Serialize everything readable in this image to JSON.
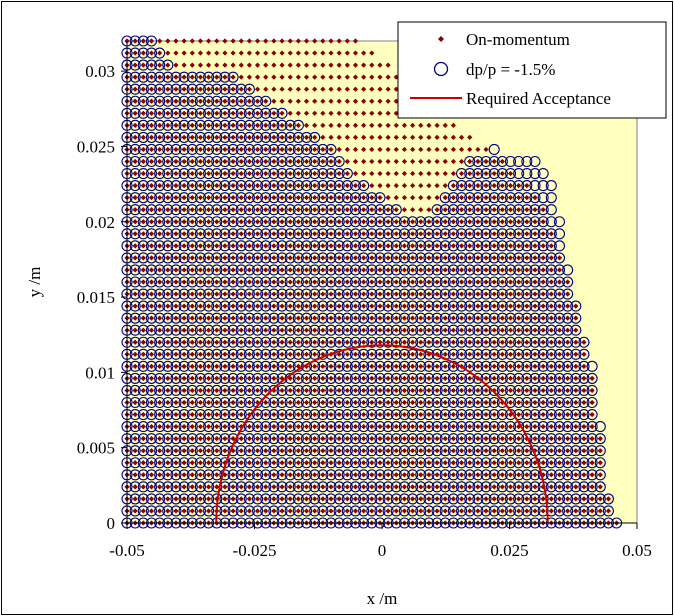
{
  "chart_data": {
    "type": "scatter",
    "xlabel": "x /m",
    "ylabel": "y /m",
    "xlim": [
      -0.05,
      0.05
    ],
    "ylim": [
      0,
      0.032
    ],
    "x_ticks": [
      -0.05,
      -0.025,
      0,
      0.025,
      0.05
    ],
    "x_tick_labels": [
      "-0.05",
      "-0.025",
      "0",
      "0.025",
      "0.05"
    ],
    "y_ticks": [
      0,
      0.005,
      0.01,
      0.015,
      0.02,
      0.025,
      0.03
    ],
    "y_tick_labels": [
      "0",
      "0.005",
      "0.01",
      "0.015",
      "0.02",
      "0.025",
      "0.03"
    ],
    "grid": false,
    "legend_position": "top-right",
    "plot_background": "#ffffc0",
    "series": [
      {
        "name": "On-momentum",
        "marker": "diamond",
        "color": "#8b0000",
        "grid_step": [
          0.0016,
          0.0008
        ],
        "boundary": [
          [
            -0.05,
            0.032
          ],
          [
            -0.04,
            0.032
          ],
          [
            -0.03,
            0.032
          ],
          [
            -0.02,
            0.032
          ],
          [
            -0.012,
            0.032
          ],
          [
            -0.005,
            0.032
          ],
          [
            0.0,
            0.031
          ],
          [
            0.004,
            0.03
          ],
          [
            0.008,
            0.028
          ],
          [
            0.012,
            0.027
          ],
          [
            0.016,
            0.026
          ],
          [
            0.02,
            0.025
          ],
          [
            0.024,
            0.024
          ],
          [
            0.027,
            0.023
          ],
          [
            0.03,
            0.022
          ],
          [
            0.033,
            0.02
          ],
          [
            0.035,
            0.018
          ],
          [
            0.037,
            0.016
          ],
          [
            0.039,
            0.013
          ],
          [
            0.041,
            0.01
          ],
          [
            0.042,
            0.008
          ],
          [
            0.043,
            0.005
          ],
          [
            0.044,
            0.003
          ],
          [
            0.045,
            0.0
          ]
        ]
      },
      {
        "name": "dp/p = -1.5%",
        "marker": "open-circle",
        "color": "#000080",
        "grid_step": [
          0.0016,
          0.0008
        ],
        "boundary": [
          [
            -0.05,
            0.032
          ],
          [
            -0.044,
            0.032
          ],
          [
            -0.04,
            0.03
          ],
          [
            -0.035,
            0.03
          ],
          [
            -0.03,
            0.03
          ],
          [
            -0.026,
            0.029
          ],
          [
            -0.022,
            0.028
          ],
          [
            -0.018,
            0.027
          ],
          [
            -0.014,
            0.026
          ],
          [
            -0.01,
            0.025
          ],
          [
            -0.006,
            0.023
          ],
          [
            -0.002,
            0.022
          ],
          [
            0.003,
            0.021
          ],
          [
            0.008,
            0.02
          ],
          [
            0.012,
            0.022
          ],
          [
            0.016,
            0.024
          ],
          [
            0.022,
            0.025
          ],
          [
            0.026,
            0.024
          ],
          [
            0.03,
            0.024
          ],
          [
            0.033,
            0.023
          ],
          [
            0.035,
            0.02
          ],
          [
            0.037,
            0.016
          ],
          [
            0.039,
            0.013
          ],
          [
            0.041,
            0.011
          ],
          [
            0.042,
            0.009
          ],
          [
            0.043,
            0.006
          ],
          [
            0.044,
            0.003
          ],
          [
            0.045,
            0.0
          ]
        ]
      },
      {
        "name": "Required Acceptance",
        "marker": "line",
        "color": "#cc0000",
        "shape": "ellipse",
        "semi_axis_x": 0.0325,
        "semi_axis_y": 0.0118
      }
    ]
  }
}
